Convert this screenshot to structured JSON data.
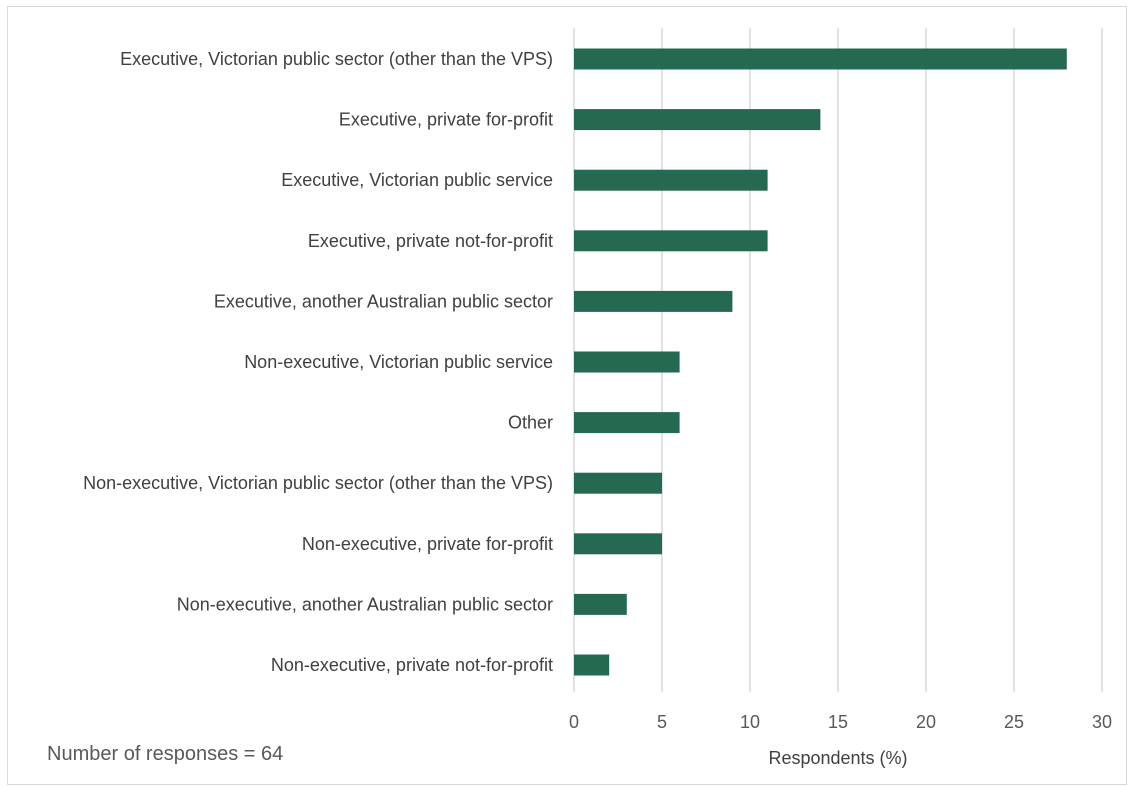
{
  "chart_data": {
    "type": "bar",
    "orientation": "horizontal",
    "categories": [
      "Executive, Victorian public sector (other than the VPS)",
      "Executive, private for-profit",
      "Executive, Victorian public service",
      "Executive, private not-for-profit",
      "Executive, another Australian public sector",
      "Non-executive, Victorian public service",
      "Other",
      "Non-executive, Victorian public sector (other than the VPS)",
      "Non-executive, private for-profit",
      "Non-executive, another Australian public sector",
      "Non-executive, private not-for-profit"
    ],
    "values": [
      28,
      14,
      11,
      11,
      9,
      6,
      6,
      5,
      5,
      3,
      2
    ],
    "xlabel": "Respondents (%)",
    "xlim": [
      0,
      30
    ],
    "xticks": [
      0,
      5,
      10,
      15,
      20,
      25,
      30
    ],
    "grid": "vertical",
    "bar_color": "#256950",
    "legend": "none"
  },
  "note": "Number of responses = 64"
}
